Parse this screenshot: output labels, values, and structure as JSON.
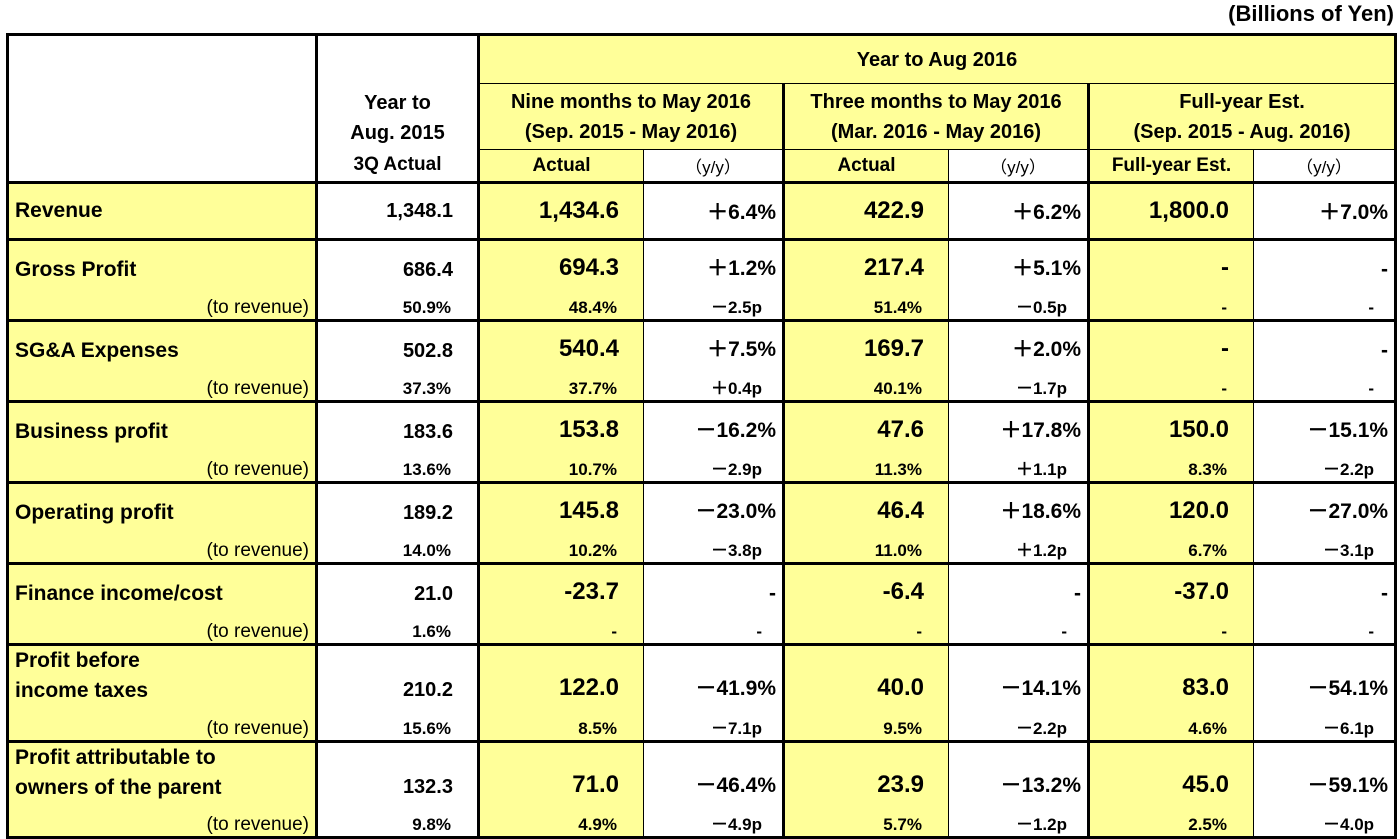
{
  "unit": "(Billions of Yen)",
  "header": {
    "prev_year": [
      "Year to",
      "Aug. 2015"
    ],
    "prev_year_sub": "3Q Actual",
    "group": "Year to Aug 2016",
    "nine": [
      "Nine months to May 2016",
      "(Sep. 2015 - May 2016)"
    ],
    "three": [
      "Three months to May 2016",
      "(Mar. 2016 - May 2016)"
    ],
    "full": [
      "Full-year Est.",
      "(Sep. 2015 - Aug. 2016)"
    ],
    "actual": "Actual",
    "yy": "（y/y）",
    "full_est": "Full-year Est."
  },
  "to_revenue_label": "(to revenue)",
  "rows": [
    {
      "label": "Revenue",
      "main": [
        "1,348.1",
        "1,434.6",
        "＋6.4%",
        "422.9",
        "＋6.2%",
        "1,800.0",
        "＋7.0%"
      ]
    },
    {
      "label": "Gross Profit",
      "main": [
        "686.4",
        "694.3",
        "＋1.2%",
        "217.4",
        "＋5.1%",
        "-",
        "-"
      ],
      "sub": [
        "50.9%",
        "48.4%",
        "－2.5p",
        "51.4%",
        "－0.5p",
        "-",
        "-"
      ]
    },
    {
      "label": "SG&A Expenses",
      "main": [
        "502.8",
        "540.4",
        "＋7.5%",
        "169.7",
        "＋2.0%",
        "-",
        "-"
      ],
      "sub": [
        "37.3%",
        "37.7%",
        "＋0.4p",
        "40.1%",
        "－1.7p",
        "-",
        "-"
      ]
    },
    {
      "label": "Business profit",
      "main": [
        "183.6",
        "153.8",
        "－16.2%",
        "47.6",
        "＋17.8%",
        "150.0",
        "－15.1%"
      ],
      "sub": [
        "13.6%",
        "10.7%",
        "－2.9p",
        "11.3%",
        "＋1.1p",
        "8.3%",
        "－2.2p"
      ]
    },
    {
      "label": "Operating profit",
      "main": [
        "189.2",
        "145.8",
        "－23.0%",
        "46.4",
        "＋18.6%",
        "120.0",
        "－27.0%"
      ],
      "sub": [
        "14.0%",
        "10.2%",
        "－3.8p",
        "11.0%",
        "＋1.2p",
        "6.7%",
        "－3.1p"
      ]
    },
    {
      "label": "Finance income/cost",
      "main": [
        "21.0",
        "-23.7",
        "-",
        "-6.4",
        "-",
        "-37.0",
        "-"
      ],
      "sub": [
        "1.6%",
        "-",
        "-",
        "-",
        "-",
        "-",
        "-"
      ]
    },
    {
      "label": [
        "Profit before",
        "income taxes"
      ],
      "main": [
        "210.2",
        "122.0",
        "－41.9%",
        "40.0",
        "－14.1%",
        "83.0",
        "－54.1%"
      ],
      "sub": [
        "15.6%",
        "8.5%",
        "－7.1p",
        "9.5%",
        "－2.2p",
        "4.6%",
        "－6.1p"
      ]
    },
    {
      "label": [
        "Profit attributable to",
        "owners of the parent"
      ],
      "main": [
        "132.3",
        "71.0",
        "－46.4%",
        "23.9",
        "－13.2%",
        "45.0",
        "－59.1%"
      ],
      "sub": [
        "9.8%",
        "4.9%",
        "－4.9p",
        "5.7%",
        "－1.2p",
        "2.5%",
        "－4.0p"
      ]
    }
  ]
}
